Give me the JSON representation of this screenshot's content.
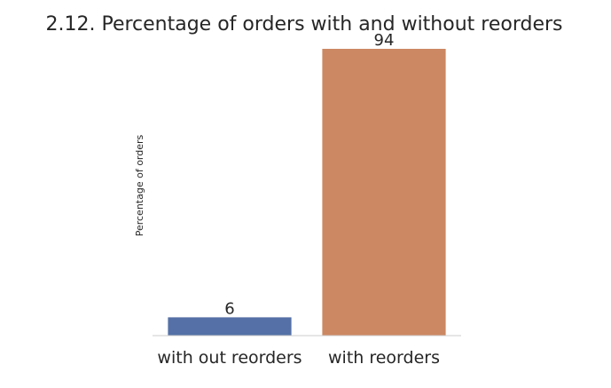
{
  "chart_data": {
    "type": "bar",
    "title": "2.12. Percentage of orders with and without reorders",
    "xlabel": "",
    "ylabel": "Percentage of orders",
    "categories": [
      "with out reorders",
      "with reorders"
    ],
    "values": [
      6,
      94
    ],
    "data_labels": [
      "6",
      "94"
    ],
    "ylim": [
      0,
      94
    ],
    "grid": false,
    "legend": "none",
    "colors": [
      "#5470a6",
      "#cc8862"
    ],
    "baseline_color": "#cccccc"
  }
}
